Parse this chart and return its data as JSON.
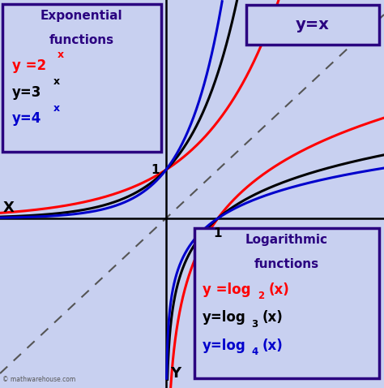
{
  "bg_color": "#c8d0f0",
  "curve_colors": {
    "base2": "#ff0000",
    "base3": "#000000",
    "base4": "#0000cc"
  },
  "title_color": "#2a0080",
  "box_border_color": "#2a0080",
  "dashed_color": "#555555",
  "xlim": [
    -3.2,
    4.2
  ],
  "ylim": [
    -3.5,
    4.5
  ]
}
